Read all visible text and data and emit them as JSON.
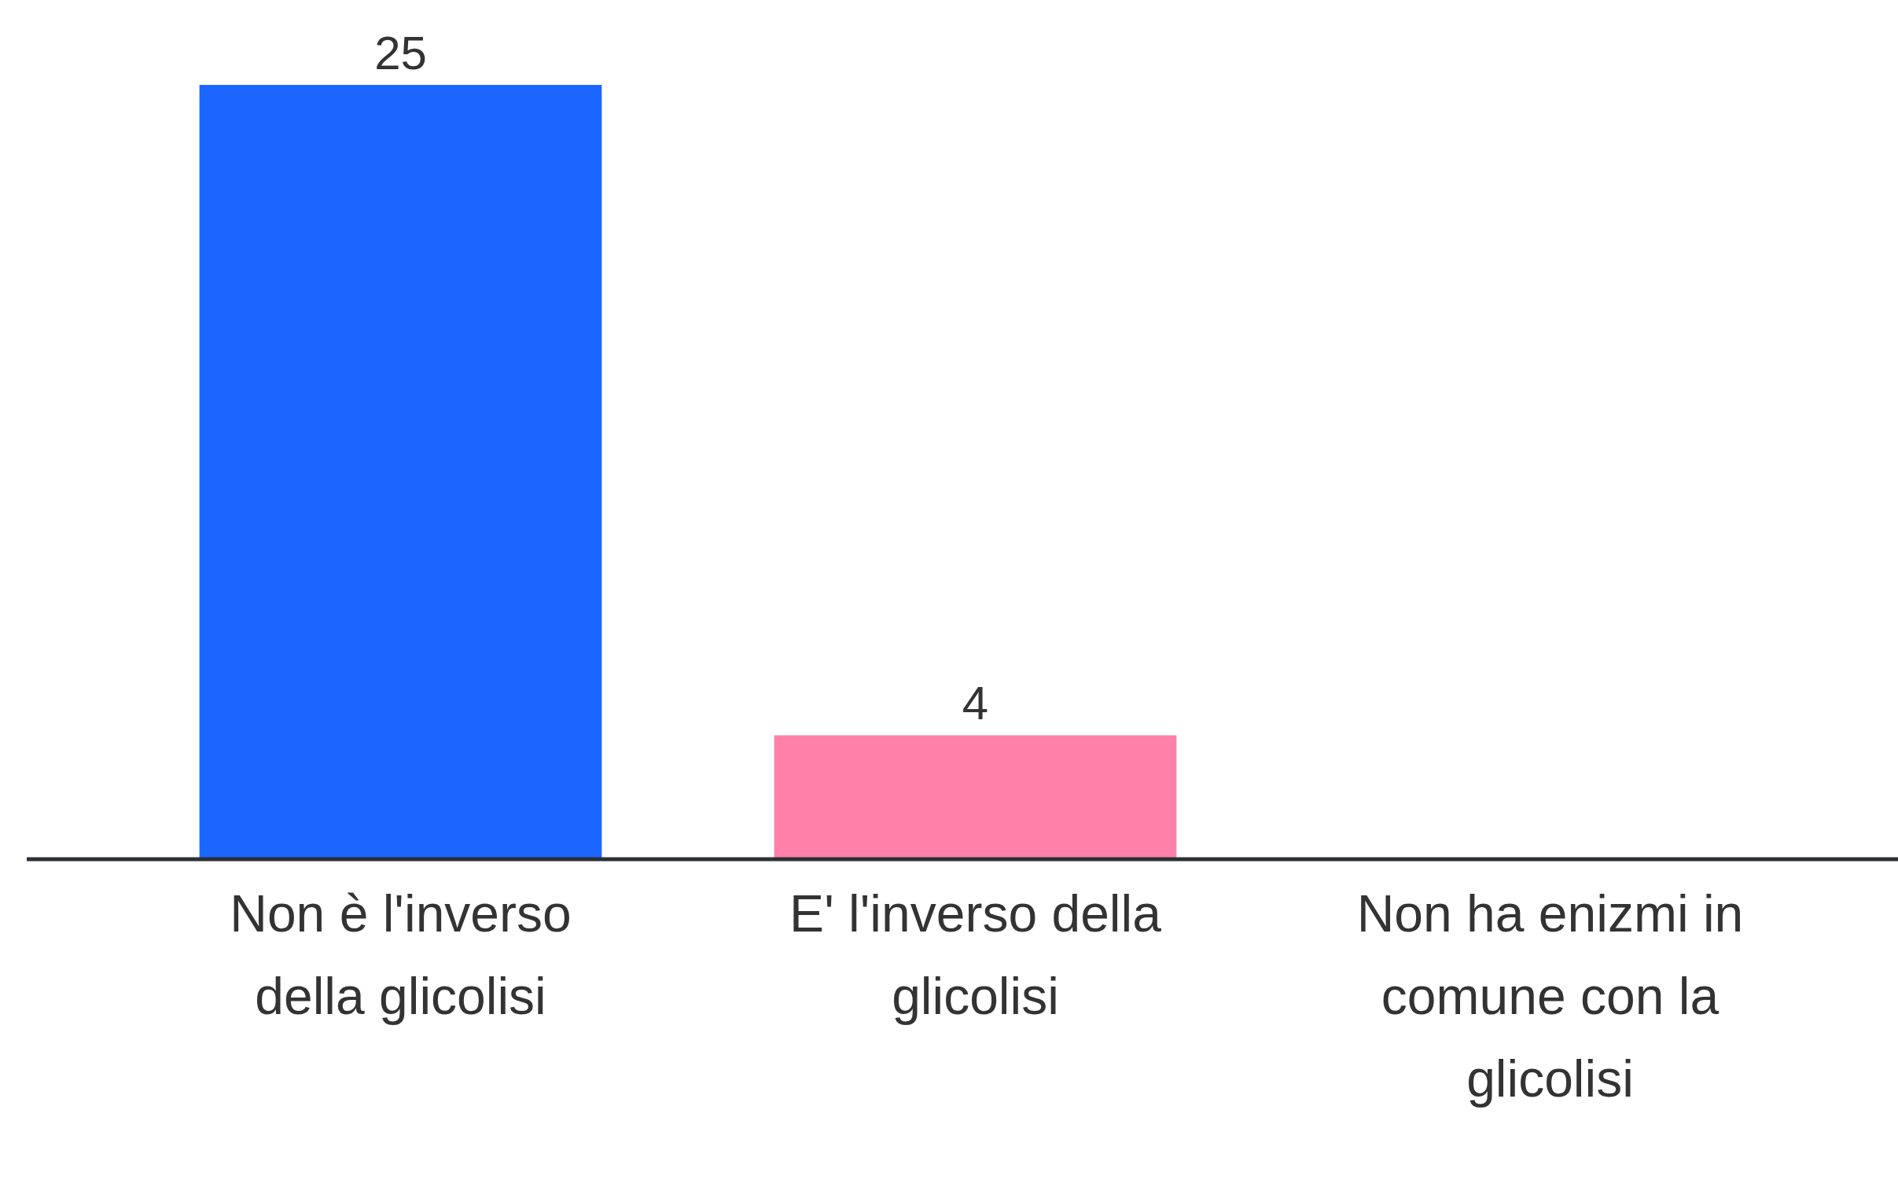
{
  "chart_data": {
    "type": "bar",
    "categories": [
      "Non è l'inverso della glicolisi",
      "E' l'inverso della glicolisi",
      "Non ha enizmi in comune con la glicolisi"
    ],
    "values": [
      25,
      4,
      0
    ],
    "colors": [
      "#1a66ff",
      "#ff80a8",
      null
    ],
    "value_labels": [
      "25",
      "4",
      null
    ]
  }
}
